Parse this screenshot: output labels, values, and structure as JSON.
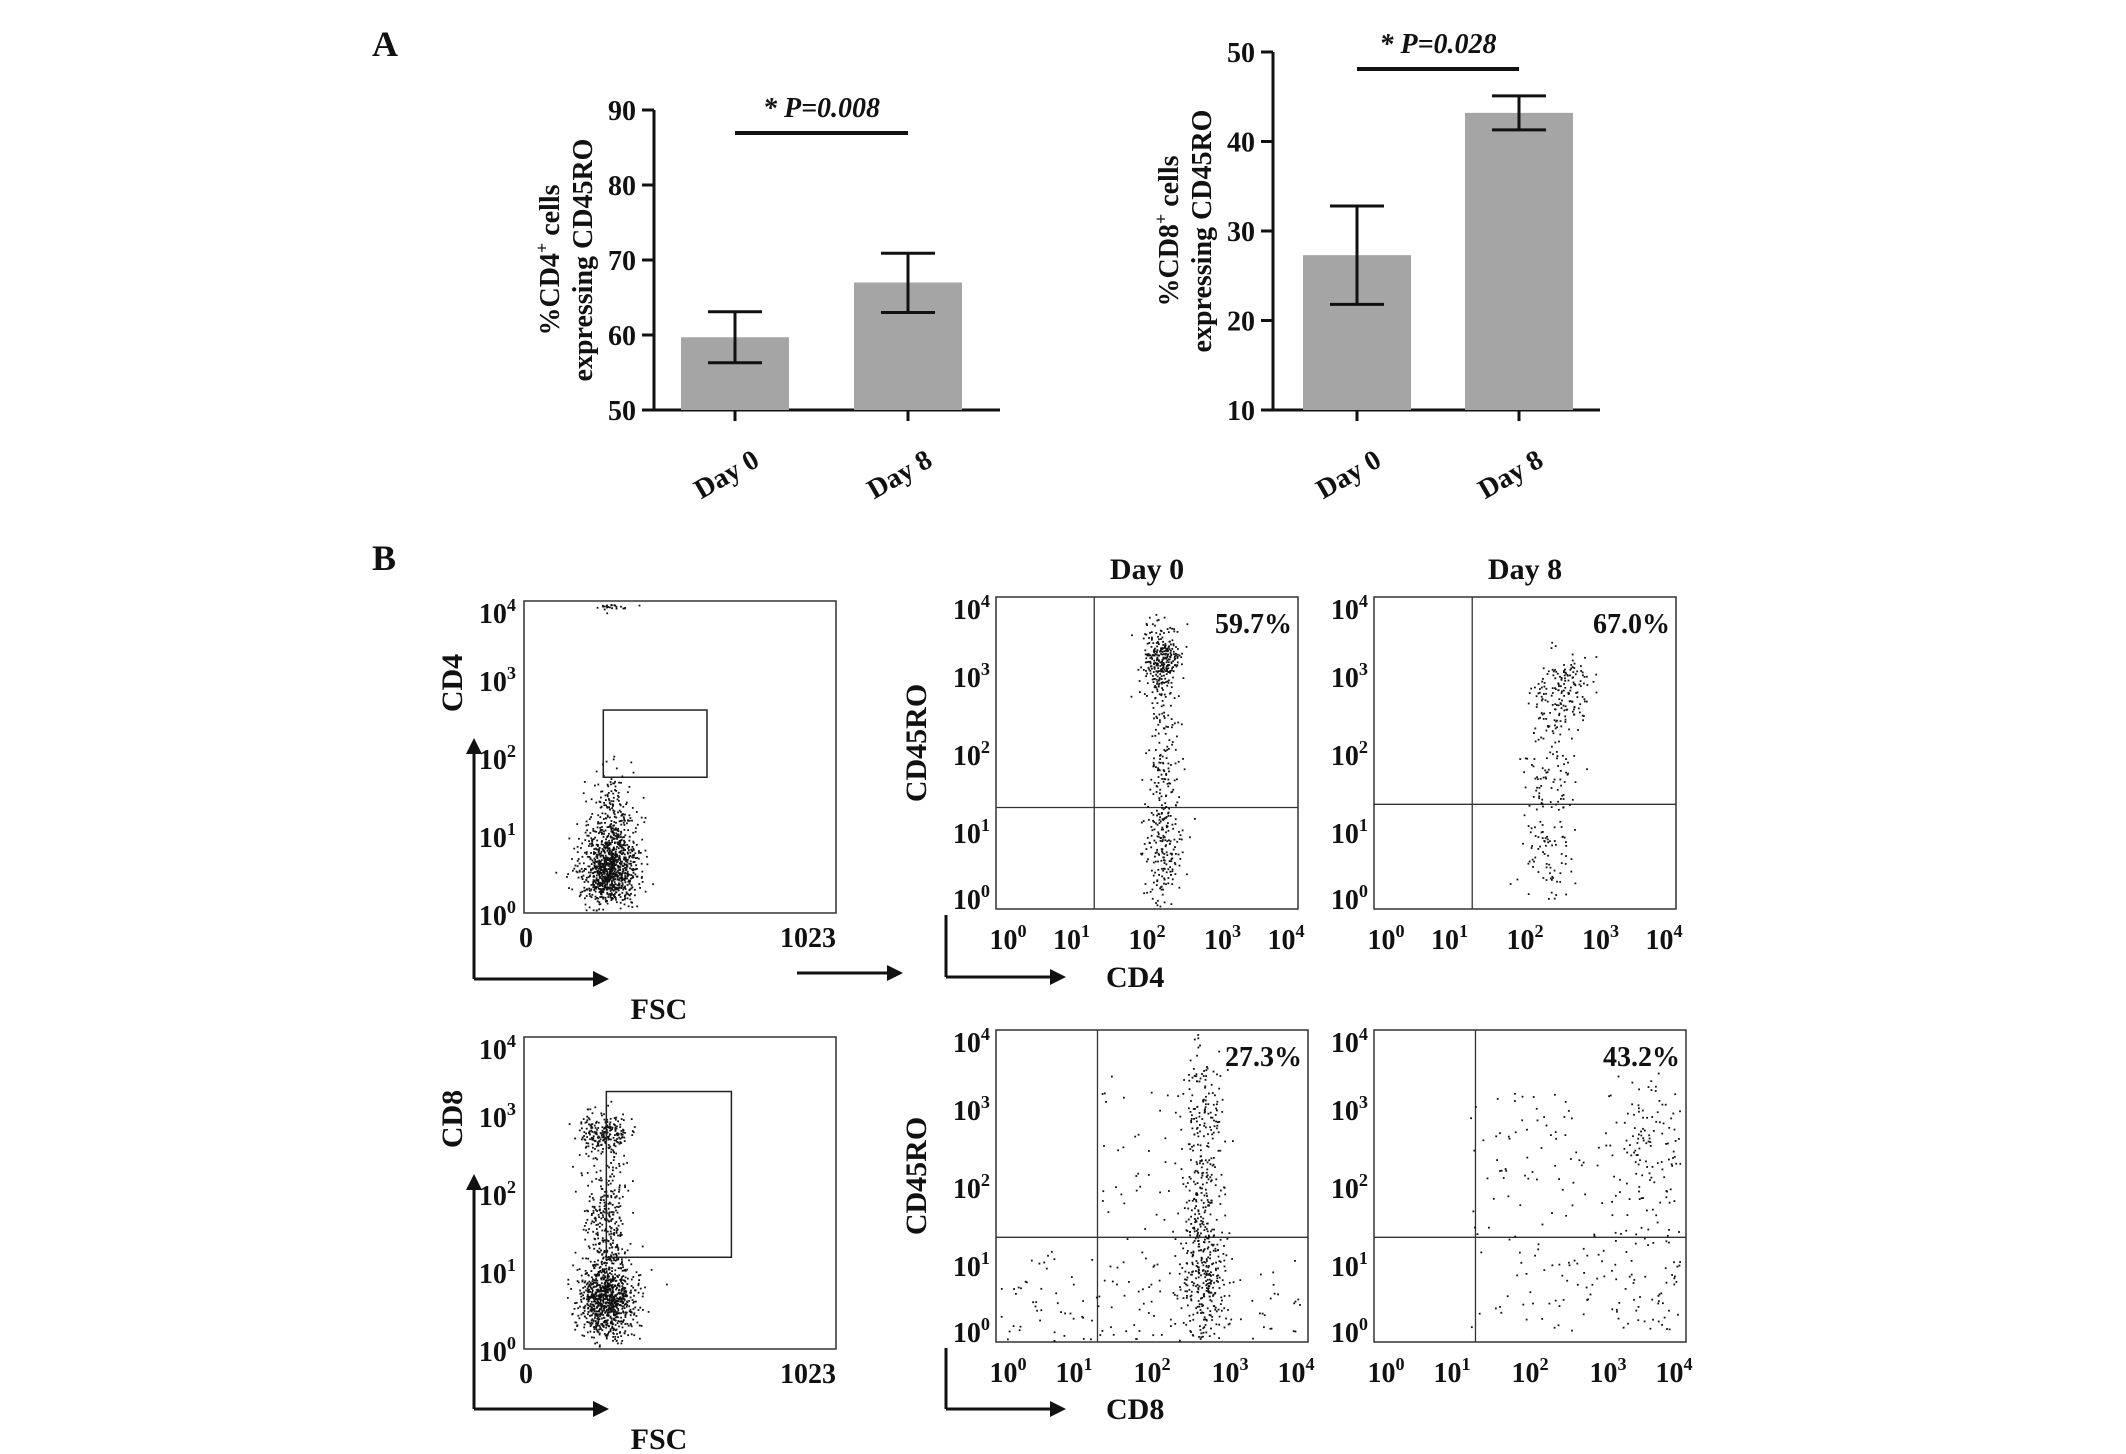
{
  "panel_labels": {
    "a": "A",
    "b": "B"
  },
  "chart_data": [
    {
      "type": "bar",
      "categories": [
        "Day 0",
        "Day 8"
      ],
      "values": [
        59.7,
        67.0
      ],
      "error_low": [
        56.3,
        63.0
      ],
      "error_high": [
        63.1,
        70.9
      ],
      "ylabel_pre": "%CD4",
      "ylabel_sup": "+",
      "ylabel_post": " cells",
      "ylabel_line2": "expressing CD45RO",
      "ylim": [
        50,
        90
      ],
      "yticks": [
        50,
        60,
        70,
        80,
        90
      ],
      "significance": "* P=0.008",
      "bar_color": "#a5a5a5"
    },
    {
      "type": "bar",
      "categories": [
        "Day 0",
        "Day 8"
      ],
      "values": [
        27.3,
        43.2
      ],
      "error_low": [
        21.8,
        41.3
      ],
      "error_high": [
        32.8,
        45.1
      ],
      "ylabel_pre": "%CD8",
      "ylabel_sup": "+",
      "ylabel_post": " cells",
      "ylabel_line2": "expressing CD45RO",
      "ylim": [
        10,
        50
      ],
      "yticks": [
        10,
        20,
        30,
        40,
        50
      ],
      "significance": "* P=0.028",
      "bar_color": "#a5a5a5"
    },
    {
      "type": "scatter",
      "title": "",
      "xlabel": "FSC",
      "ylabel": "CD4",
      "xlim": [
        0,
        1023
      ],
      "x_ticks": [
        "0",
        "1023"
      ],
      "y_ticks": [
        "10",
        "10",
        "10",
        "10",
        "10"
      ],
      "y_exps": [
        "0",
        "1",
        "2",
        "3",
        "4"
      ],
      "y_scale": "log",
      "gate": {
        "x": [
          260,
          600
        ],
        "y": [
          55,
          400
        ]
      }
    },
    {
      "type": "scatter",
      "title": "Day 0",
      "xlabel": "CD4",
      "ylabel": "CD45RO",
      "x_scale": "log",
      "y_scale": "log",
      "tick_base": "10",
      "tick_exps": [
        "0",
        "1",
        "2",
        "3",
        "4"
      ],
      "quadrant": {
        "x": 20,
        "y": 20
      },
      "annotation": "59.7%"
    },
    {
      "type": "scatter",
      "title": "Day 8",
      "x_scale": "log",
      "y_scale": "log",
      "tick_base": "10",
      "tick_exps": [
        "0",
        "1",
        "2",
        "3",
        "4"
      ],
      "quadrant": {
        "x": 20,
        "y": 22
      },
      "annotation": "67.0%"
    },
    {
      "type": "scatter",
      "title": "",
      "xlabel": "FSC",
      "ylabel": "CD8",
      "xlim": [
        0,
        1023
      ],
      "x_ticks": [
        "0",
        "1023"
      ],
      "y_ticks": [
        "10",
        "10",
        "10",
        "10",
        "10"
      ],
      "y_exps": [
        "0",
        "1",
        "2",
        "3",
        "4"
      ],
      "y_scale": "log",
      "gate": {
        "x": [
          270,
          680
        ],
        "y": [
          15,
          2000
        ]
      }
    },
    {
      "type": "scatter",
      "title": "",
      "xlabel": "CD8",
      "ylabel": "CD45RO",
      "x_scale": "log",
      "y_scale": "log",
      "tick_base": "10",
      "tick_exps": [
        "0",
        "1",
        "2",
        "3",
        "4"
      ],
      "quadrant": {
        "x": 20,
        "y": 22
      },
      "annotation": "27.3%"
    },
    {
      "type": "scatter",
      "title": "",
      "x_scale": "log",
      "y_scale": "log",
      "tick_base": "10",
      "tick_exps": [
        "0",
        "1",
        "2",
        "3",
        "4"
      ],
      "quadrant": {
        "x": 20,
        "y": 22
      },
      "annotation": "43.2%"
    }
  ]
}
